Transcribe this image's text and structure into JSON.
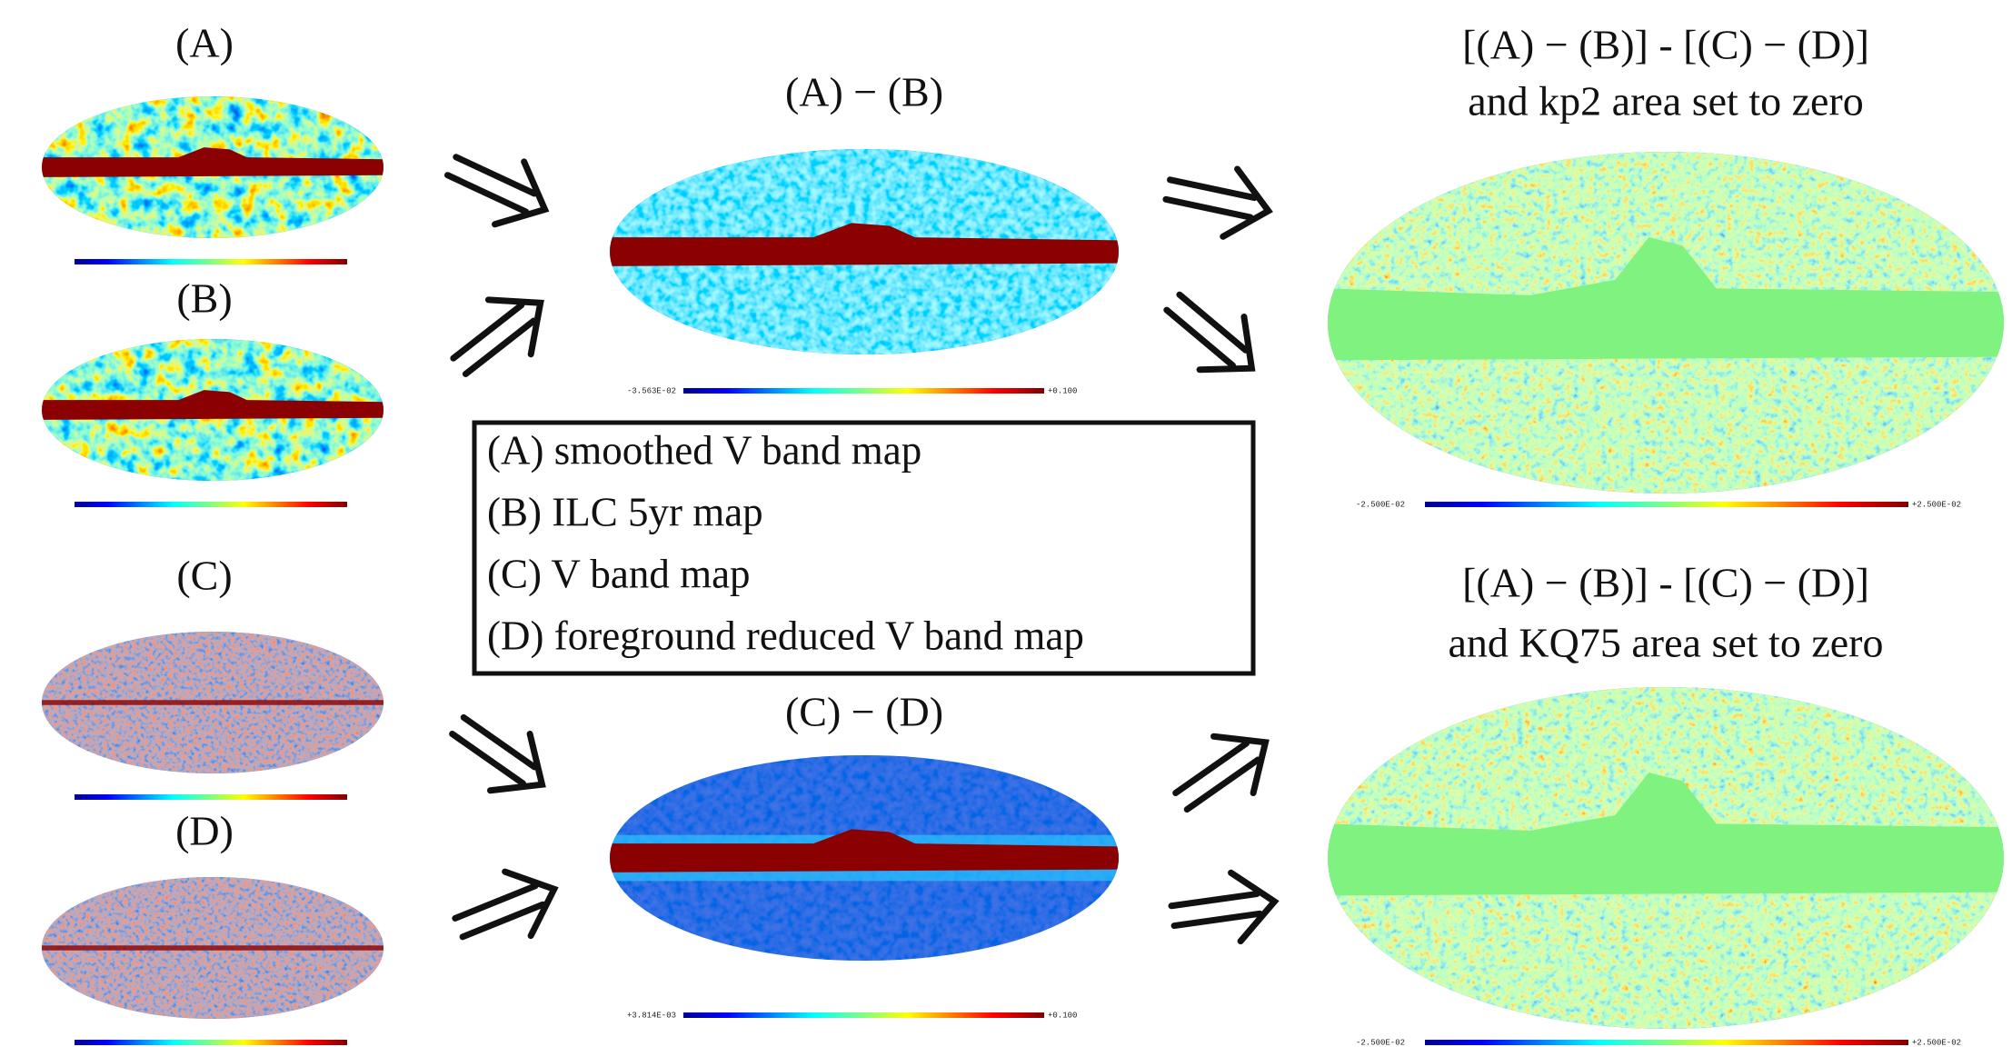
{
  "panels": {
    "a": {
      "label": "(A)"
    },
    "b": {
      "label": "(B)"
    },
    "c": {
      "label": "(C)"
    },
    "d": {
      "label": "(D)"
    }
  },
  "differences": {
    "a_minus_b": {
      "label": "(A) − (B)",
      "colorbar_min": "-3.563E-02",
      "colorbar_max": "+0.100"
    },
    "c_minus_d": {
      "label": "(C) − (D)",
      "colorbar_min": "+3.814E-03",
      "colorbar_max": "+0.100"
    }
  },
  "legend": [
    "(A) smoothed V band map",
    "(B) ILC 5yr map",
    "(C) V band map",
    "(D) foreground reduced V band map"
  ],
  "results": {
    "kp2": {
      "title_line1": "[(A) − (B)] - [(C) − (D)]",
      "title_line2": "and kp2 area set to zero",
      "colorbar_min": "-2.500E-02",
      "colorbar_max": "+2.500E-02"
    },
    "kq75": {
      "title_line1": "[(A) − (B)] - [(C) − (D)]",
      "title_line2": "and KQ75 area set to zero",
      "colorbar_min": "-2.500E-02",
      "colorbar_max": "+2.500E-02"
    }
  }
}
